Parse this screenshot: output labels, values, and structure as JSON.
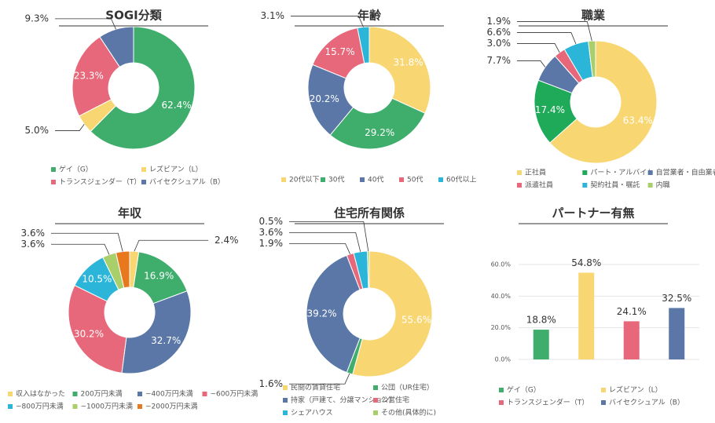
{
  "chart_data": [
    {
      "type": "pie",
      "title": "SOGI分類",
      "categories": [
        "ゲイ（G）",
        "レズビアン（L）",
        "トランスジェンダー（T）",
        "バイセクシュアル（B）"
      ],
      "values": [
        62.4,
        5.0,
        23.3,
        9.3
      ],
      "value_labels": [
        "62.4%",
        "5.0%",
        "23.3%",
        "9.3%"
      ],
      "colors": [
        "#3fae6c",
        "#f8d773",
        "#e7687a",
        "#5a77a8"
      ]
    },
    {
      "type": "pie",
      "title": "年齢",
      "categories": [
        "20代以下",
        "30代",
        "40代",
        "50代",
        "60代以上"
      ],
      "values": [
        31.8,
        29.2,
        20.2,
        15.7,
        3.1
      ],
      "value_labels": [
        "31.8%",
        "29.2%",
        "20.2%",
        "15.7%",
        "3.1%"
      ],
      "colors": [
        "#f8d773",
        "#3fae6c",
        "#5a77a8",
        "#e7687a",
        "#2bb5d8"
      ]
    },
    {
      "type": "pie",
      "title": "職業",
      "categories": [
        "正社員",
        "パート・アルバイト",
        "自営業者・自由業者",
        "派遣社員",
        "契約社員・嘱託",
        "内職"
      ],
      "values": [
        63.4,
        17.4,
        7.7,
        3.0,
        6.6,
        1.9
      ],
      "value_labels": [
        "63.4%",
        "17.4%",
        "7.7%",
        "3.0%",
        "6.6%",
        "1.9%"
      ],
      "colors": [
        "#f8d773",
        "#1faa5a",
        "#5a77a8",
        "#e7687a",
        "#2bb5d8",
        "#a9cf6a"
      ]
    },
    {
      "type": "pie",
      "title": "年収",
      "categories": [
        "収入はなかった",
        "200万円未満",
        "~400万円未満",
        "~600万円未満",
        "~800万円未満",
        "~1000万円未満",
        "~2000万円未満"
      ],
      "values": [
        2.4,
        16.9,
        32.7,
        30.2,
        10.5,
        3.6,
        3.6
      ],
      "value_labels": [
        "2.4%",
        "16.9%",
        "32.7%",
        "30.2%",
        "10.5%",
        "3.6%",
        "3.6%"
      ],
      "colors": [
        "#f8d773",
        "#3fae6c",
        "#5a77a8",
        "#e7687a",
        "#2bb5d8",
        "#a9cf6a",
        "#e8781e"
      ]
    },
    {
      "type": "pie",
      "title": "住宅所有関係",
      "categories": [
        "民間の賃貸住宅",
        "公団（UR住宅）",
        "持家（戸建て、分譲マンション）",
        "公営住宅",
        "シェアハウス",
        "その他(具体的に)"
      ],
      "values": [
        55.6,
        1.6,
        39.2,
        1.9,
        3.6,
        0.5
      ],
      "value_labels": [
        "55.6%",
        "1.6%",
        "39.2%",
        "1.9%",
        "3.6%",
        "0.5%"
      ],
      "colors": [
        "#f8d773",
        "#3fae6c",
        "#5a77a8",
        "#e7687a",
        "#2bb5d8",
        "#a9cf6a"
      ]
    },
    {
      "type": "bar",
      "title": "パートナー有無",
      "categories": [
        "ゲイ（G）",
        "レズビアン（L）",
        "トランスジェンダー（T）",
        "バイセクシュアル（B）"
      ],
      "values": [
        18.8,
        54.8,
        24.1,
        32.5
      ],
      "value_labels": [
        "18.8%",
        "54.8%",
        "24.1%",
        "32.5%"
      ],
      "colors": [
        "#3fae6c",
        "#f8d773",
        "#e7687a",
        "#5a77a8"
      ],
      "ylim": [
        0,
        60
      ],
      "yticks": [
        {
          "value": 0,
          "label": "0.0%"
        },
        {
          "value": 20,
          "label": "20.0%"
        },
        {
          "value": 40,
          "label": "40.0%"
        },
        {
          "value": 60,
          "label": "60.0%"
        }
      ],
      "grid": true
    }
  ]
}
